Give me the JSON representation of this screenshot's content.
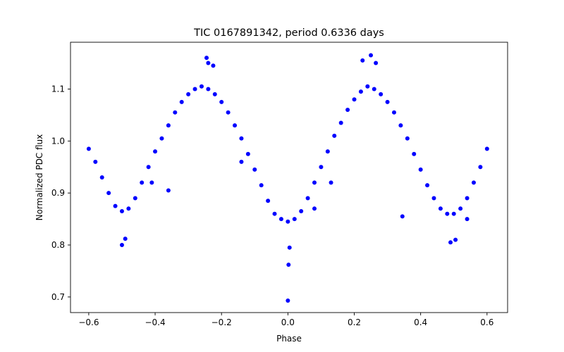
{
  "chart_data": {
    "type": "scatter",
    "title": "TIC 0167891342, period 0.6336 days",
    "xlabel": "Phase",
    "ylabel": "Normalized PDC flux",
    "xlim": [
      -0.655,
      0.662
    ],
    "ylim": [
      0.67,
      1.19
    ],
    "xticks": [
      -0.6,
      -0.4,
      -0.2,
      0.0,
      0.2,
      0.4,
      0.6
    ],
    "xtick_labels": [
      "−0.6",
      "−0.4",
      "−0.2",
      "0.0",
      "0.2",
      "0.4",
      "0.6"
    ],
    "yticks": [
      0.7,
      0.8,
      0.9,
      1.0,
      1.1
    ],
    "ytick_labels": [
      "0.7",
      "0.8",
      "0.9",
      "1.0",
      "1.1"
    ],
    "grid": false,
    "marker_color": "#0000ff",
    "series": [
      {
        "x": [
          -0.6,
          -0.58,
          -0.56,
          -0.54,
          -0.52,
          -0.5,
          -0.48,
          -0.46,
          -0.44,
          -0.42,
          -0.4,
          -0.38,
          -0.36,
          -0.34,
          -0.32,
          -0.3,
          -0.28,
          -0.26,
          -0.24,
          -0.22,
          -0.2,
          -0.18,
          -0.16,
          -0.14,
          -0.12,
          -0.1,
          -0.08,
          -0.06,
          -0.04,
          -0.02,
          0.0,
          0.02,
          0.04,
          0.06,
          0.08,
          0.1,
          0.12,
          0.14,
          0.16,
          0.18,
          0.2,
          0.22,
          0.24,
          0.26,
          0.28,
          0.3,
          0.32,
          0.34,
          0.36,
          0.38,
          0.4,
          0.42,
          0.44,
          0.46,
          0.48,
          0.5,
          0.52,
          0.54,
          0.56,
          0.58,
          0.6,
          -0.245,
          -0.24,
          -0.225,
          0.225,
          0.25,
          0.265,
          -0.5,
          -0.49,
          0.49,
          0.505,
          0.0,
          0.002,
          0.005,
          -0.14,
          -0.41,
          0.13,
          0.345,
          0.08,
          -0.36,
          0.54
        ],
        "y": [
          0.985,
          0.96,
          0.93,
          0.9,
          0.875,
          0.865,
          0.87,
          0.89,
          0.92,
          0.95,
          0.98,
          1.005,
          1.03,
          1.055,
          1.075,
          1.09,
          1.1,
          1.105,
          1.1,
          1.09,
          1.075,
          1.055,
          1.03,
          1.005,
          0.975,
          0.945,
          0.915,
          0.885,
          0.86,
          0.85,
          0.845,
          0.85,
          0.865,
          0.89,
          0.92,
          0.95,
          0.98,
          1.01,
          1.035,
          1.06,
          1.08,
          1.095,
          1.105,
          1.1,
          1.09,
          1.075,
          1.055,
          1.03,
          1.005,
          0.975,
          0.945,
          0.915,
          0.89,
          0.87,
          0.86,
          0.86,
          0.87,
          0.89,
          0.92,
          0.95,
          0.985,
          1.16,
          1.15,
          1.145,
          1.155,
          1.165,
          1.15,
          0.8,
          0.812,
          0.805,
          0.81,
          0.693,
          0.762,
          0.795,
          0.96,
          0.92,
          0.92,
          0.855,
          0.87,
          0.905,
          0.85
        ]
      }
    ]
  }
}
